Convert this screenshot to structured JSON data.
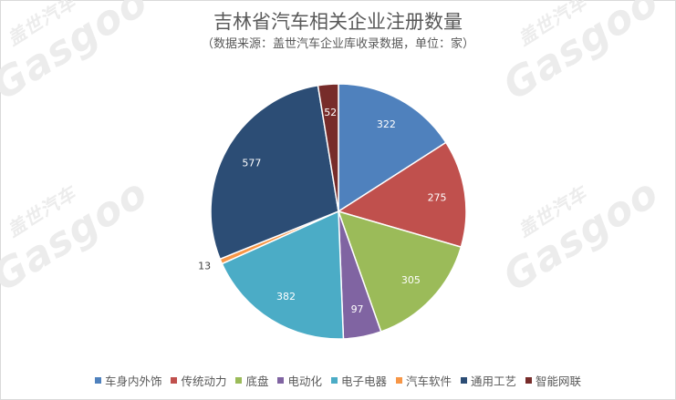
{
  "watermark": {
    "text": "Gasgoo",
    "cn": "盖世汽车"
  },
  "chart_data": {
    "type": "pie",
    "title": "吉林省汽车相关企业注册数量",
    "subtitle": "（数据来源：盖世汽车企业库收录数据，单位：家）",
    "categories": [
      "车身内外饰",
      "传统动力",
      "底盘",
      "电动化",
      "电子电器",
      "汽车软件",
      "通用工艺",
      "智能网联"
    ],
    "values": [
      322,
      275,
      305,
      97,
      382,
      13,
      577,
      52
    ],
    "colors": [
      "#4f81bd",
      "#c0504d",
      "#9bbb59",
      "#8064a2",
      "#4bacc6",
      "#f79646",
      "#2c4d75",
      "#772c2a"
    ],
    "legend_position": "bottom",
    "start": "top-clockwise"
  }
}
